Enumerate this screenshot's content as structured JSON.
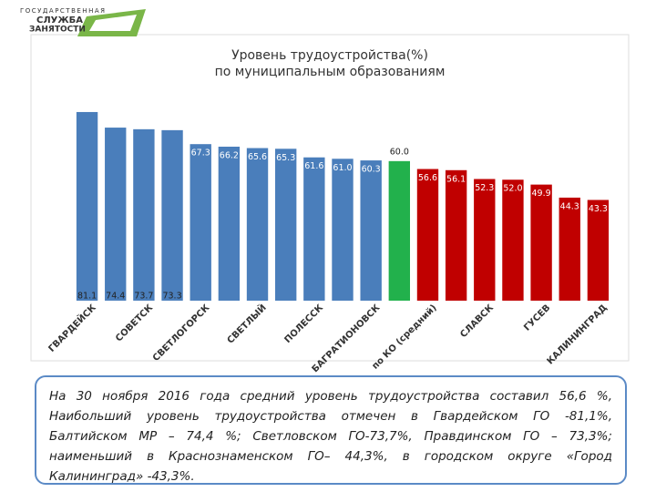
{
  "logo": {
    "line1": "ГОСУДАРСТВЕННАЯ",
    "line2": "СЛУЖБА",
    "line3": "ЗАНЯТОСТИ"
  },
  "chart_data": {
    "type": "bar",
    "title": [
      "Уровень трудоустройства(%)",
      "по муниципальным образованиям"
    ],
    "categories": [
      "ГВАРДЕЙСК",
      null,
      "СОВЕТСК",
      null,
      "СВЕТЛОГОРСК",
      null,
      "СВЕТЛЫЙ",
      null,
      "ПОЛЕССК",
      null,
      "БАГРАТИОНОВСК",
      null,
      "по КО (средний)",
      null,
      "СЛАВСК",
      null,
      "ГУСЕВ",
      null,
      "КАЛИНИНГРАД"
    ],
    "values": [
      81.1,
      74.4,
      73.7,
      73.3,
      67.3,
      66.2,
      65.6,
      65.3,
      61.6,
      61.0,
      60.3,
      60.0,
      56.6,
      56.1,
      52.3,
      52.0,
      49.9,
      44.3,
      43.3
    ],
    "value_labels": [
      "81.1",
      "74.4",
      "73.7",
      "73.3",
      "67.3",
      "66.2",
      "65.6",
      "65.3",
      "61.6",
      "61.0",
      "60.3",
      "60.0",
      "56.6",
      "56.1",
      "52.3",
      "52.0",
      "49.9",
      "44.3",
      "43.3"
    ],
    "colors": [
      "#4a7ebb",
      "#4a7ebb",
      "#4a7ebb",
      "#4a7ebb",
      "#4a7ebb",
      "#4a7ebb",
      "#4a7ebb",
      "#4a7ebb",
      "#4a7ebb",
      "#4a7ebb",
      "#4a7ebb",
      "#22b14c",
      "#c00000",
      "#c00000",
      "#c00000",
      "#c00000",
      "#c00000",
      "#c00000",
      "#c00000"
    ],
    "ylim": [
      0,
      85
    ]
  },
  "note": "На 30 ноября 2016 года средний уровень трудоустройства составил 56,6 %, Наибольший уровень трудоустройства отмечен в Гвардейском ГО -81,1%, Балтийском МР – 74,4 %; Светловском ГО-73,7%, Правдинском ГО – 73,3%; наименьший в Краснознаменском ГО– 44,3%, в городском округе «Город Калининград» -43,3%."
}
